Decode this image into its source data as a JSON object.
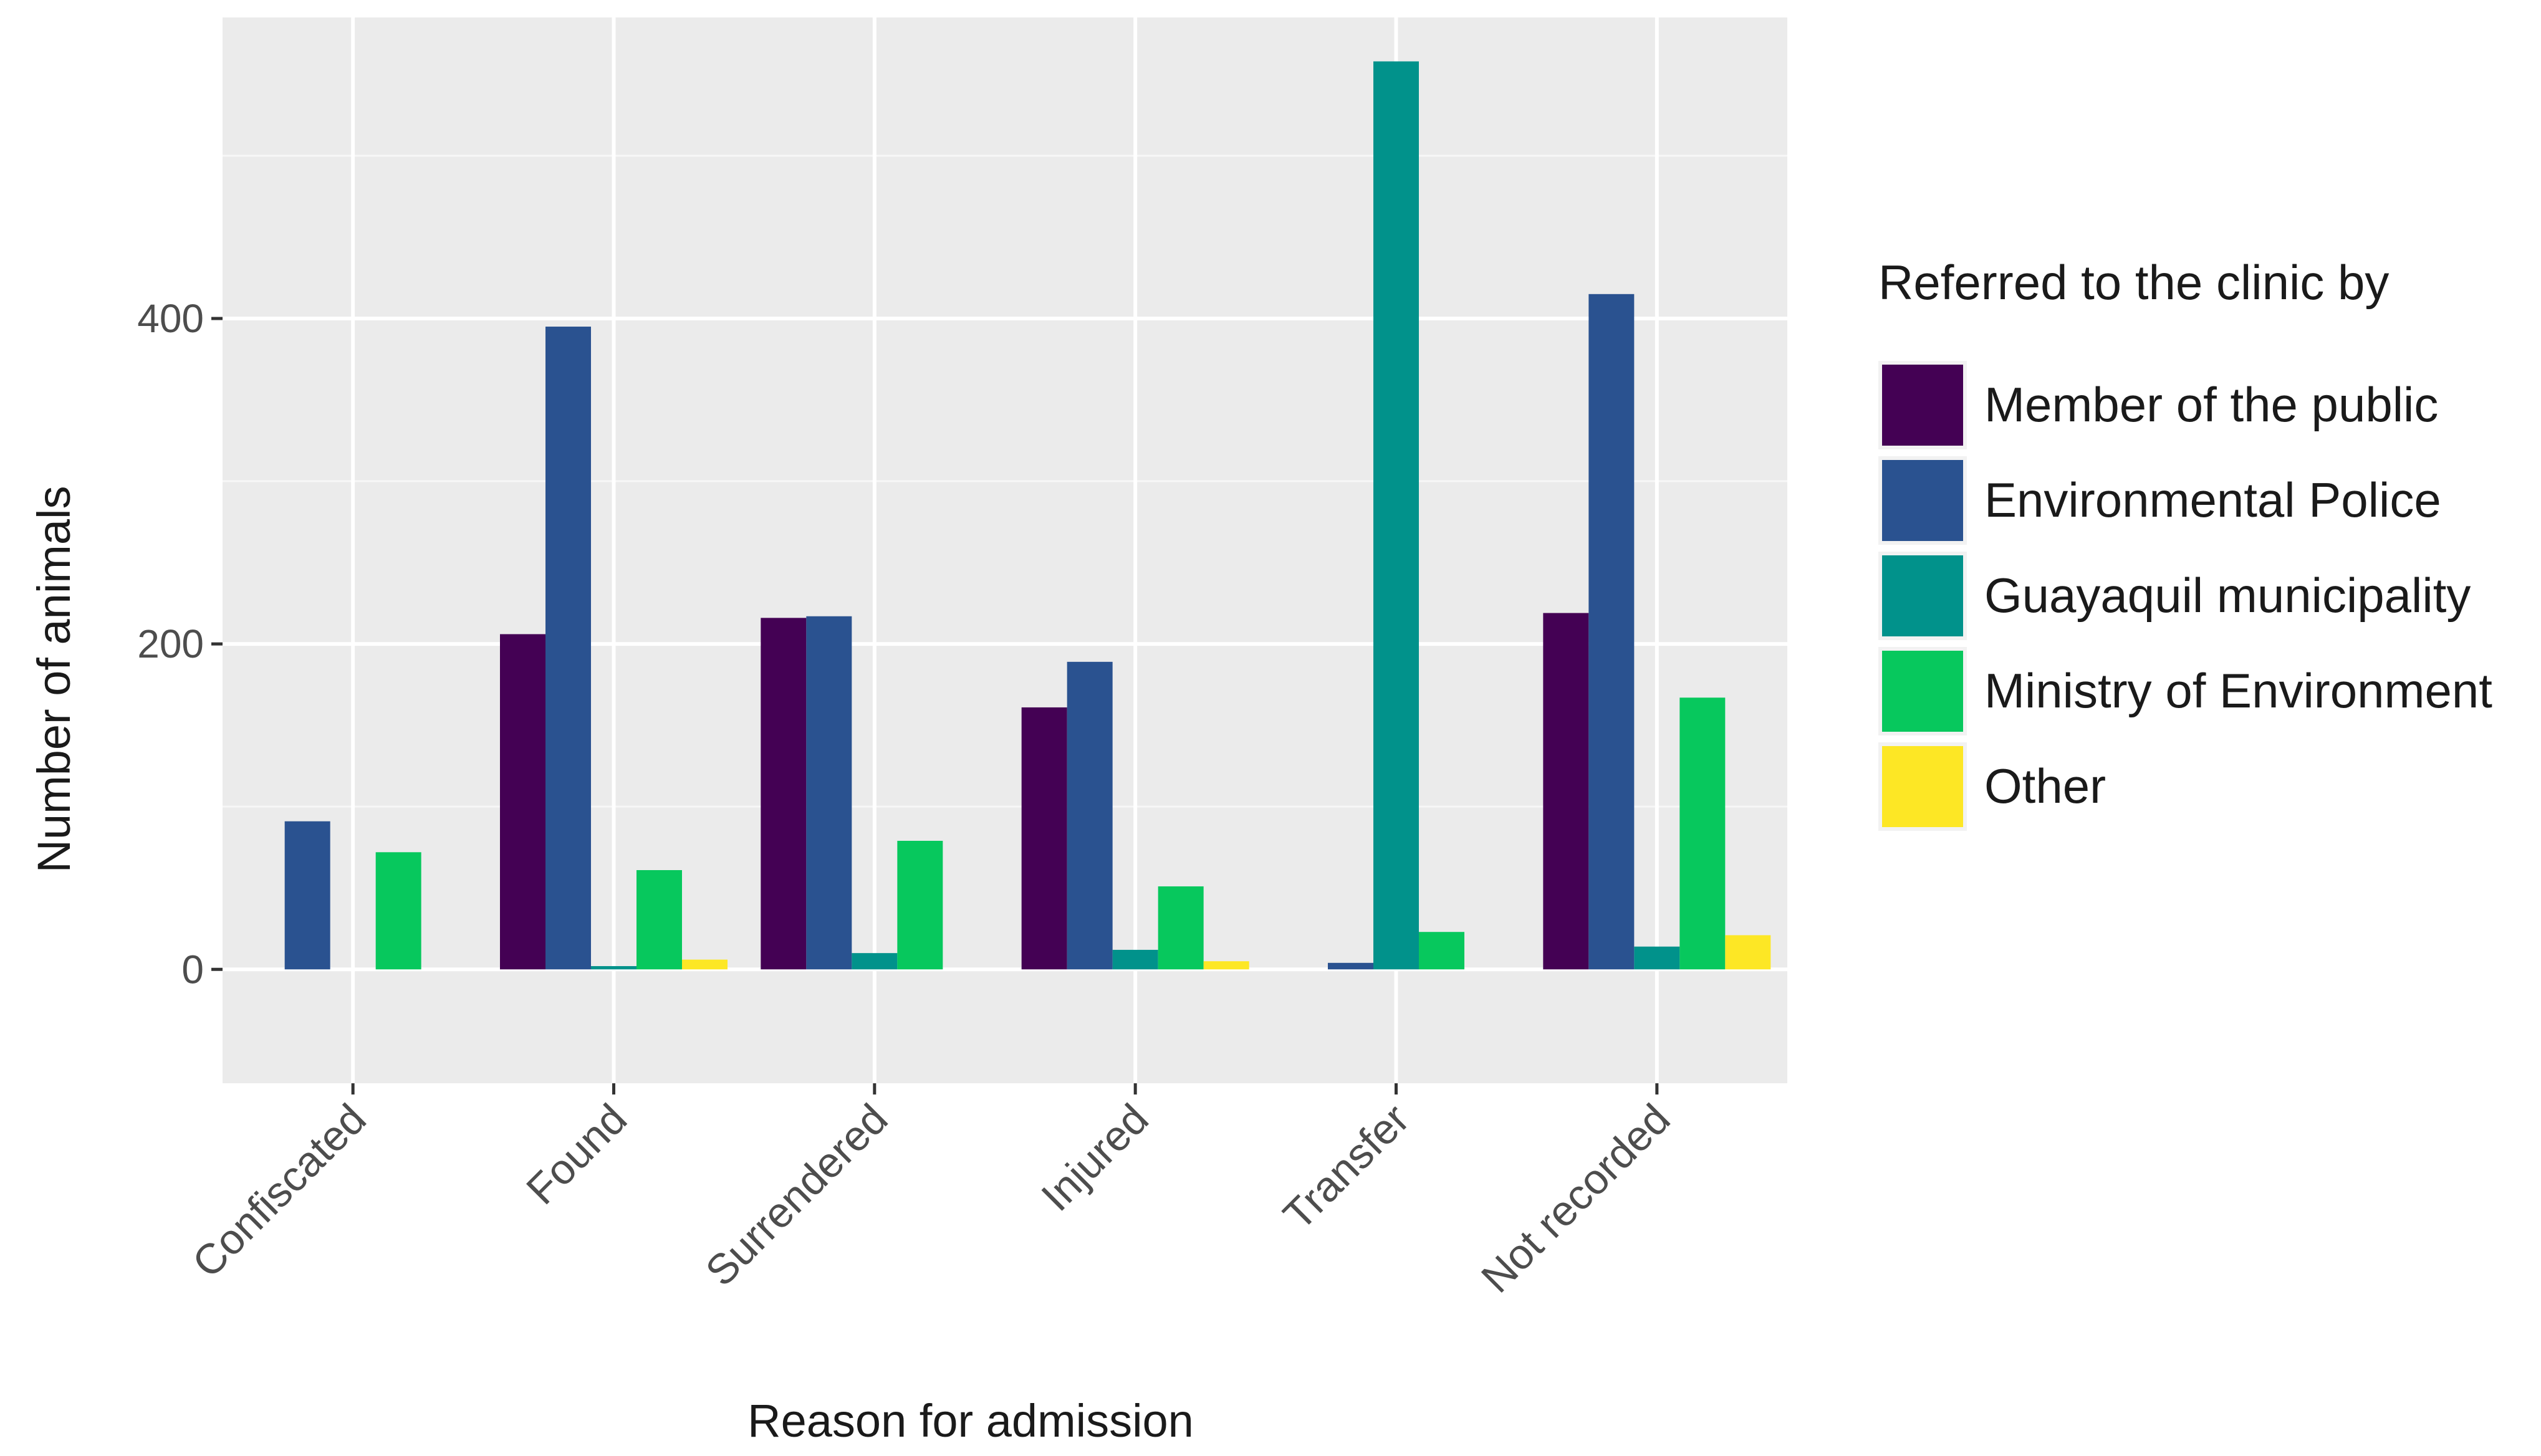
{
  "chart_data": {
    "type": "bar",
    "title": "",
    "xlabel": "Reason for admission",
    "ylabel": "Number of animals",
    "categories": [
      "Confiscated",
      "Found",
      "Surrendered",
      "Injured",
      "Transfer",
      "Not recorded"
    ],
    "ylim": [
      -70,
      585
    ],
    "yticks": [
      0,
      200,
      400
    ],
    "grid": true,
    "legend": {
      "title": "Referred to the clinic by",
      "position": "right"
    },
    "series": [
      {
        "name": "Member of the public",
        "color": "#440154",
        "values": [
          0,
          206,
          216,
          161,
          0,
          219
        ]
      },
      {
        "name": "Environmental Police",
        "color": "#2a5290",
        "values": [
          91,
          395,
          217,
          189,
          4,
          415
        ]
      },
      {
        "name": "Guayaquil municipality",
        "color": "#01928b",
        "values": [
          0,
          2,
          10,
          12,
          558,
          14
        ]
      },
      {
        "name": "Ministry of Environment",
        "color": "#07c85d",
        "values": [
          72,
          61,
          79,
          51,
          23,
          167
        ]
      },
      {
        "name": "Other",
        "color": "#fde725",
        "values": [
          0,
          6,
          0,
          5,
          0,
          21
        ]
      }
    ]
  }
}
